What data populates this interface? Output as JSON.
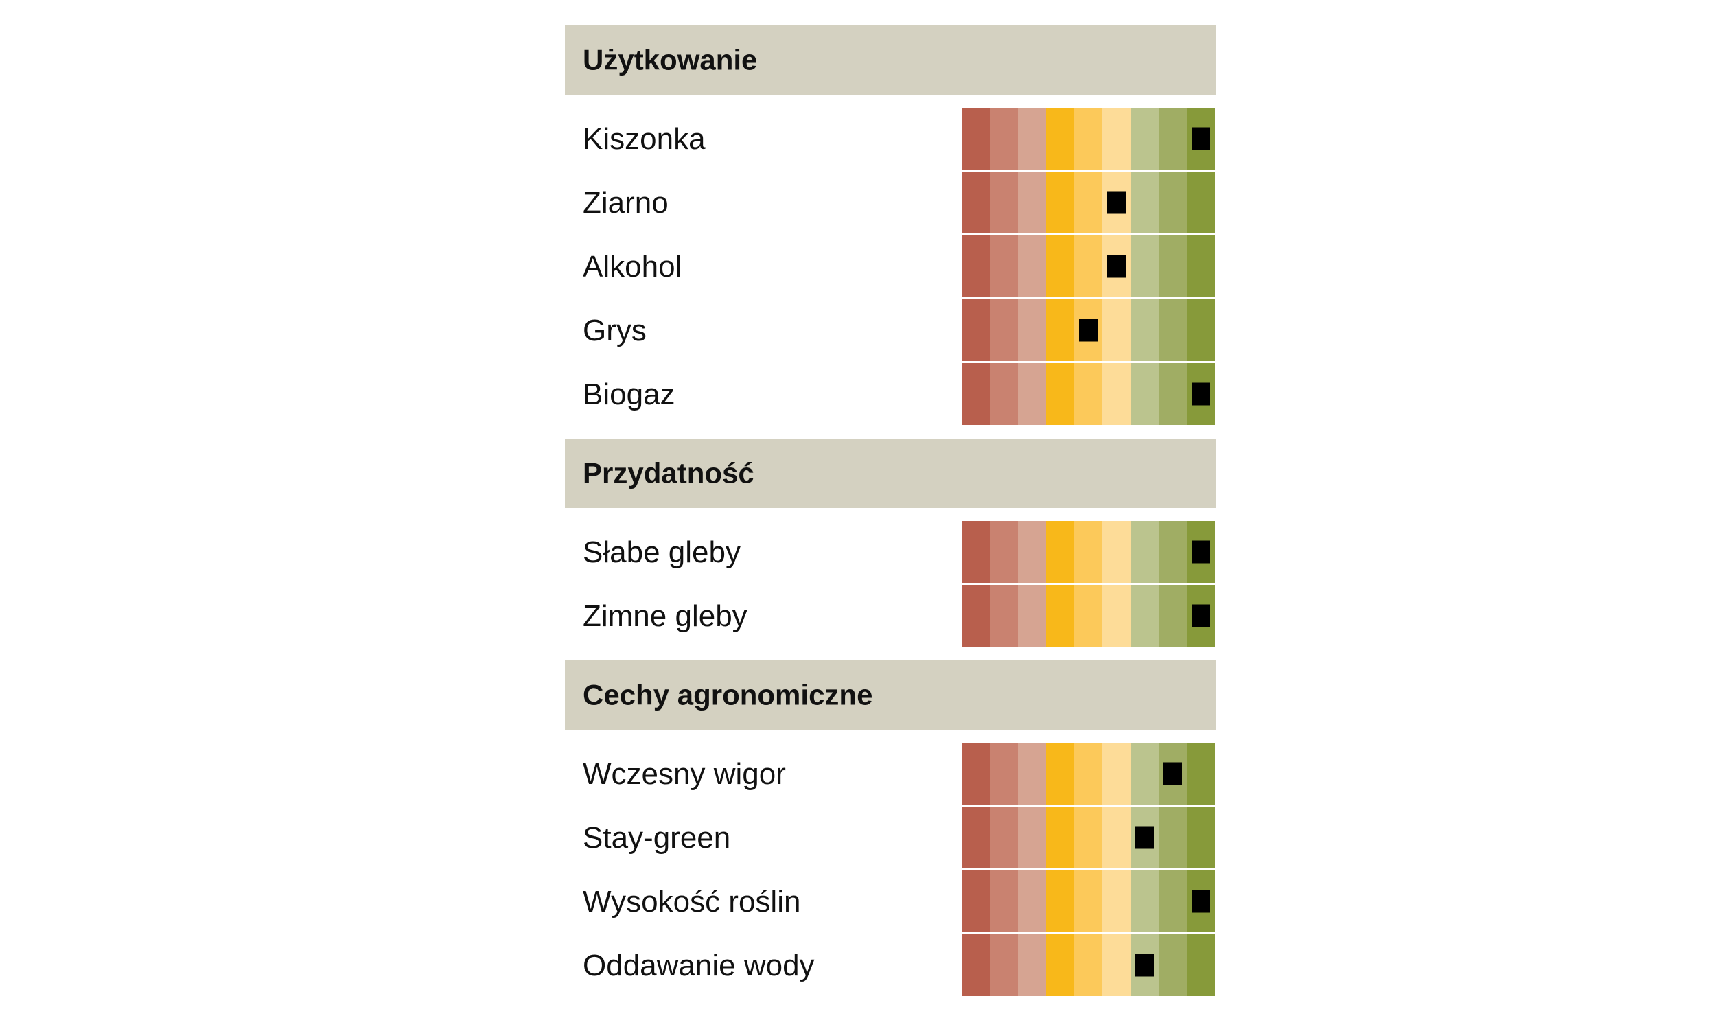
{
  "chart_data": {
    "type": "table",
    "scale_steps": 9,
    "scale_colors": [
      "#b85f4d",
      "#c98270",
      "#d6a492",
      "#f8b81a",
      "#fcc95a",
      "#fddc98",
      "#bbc48e",
      "#a0ad64",
      "#879a3a"
    ],
    "sections": [
      {
        "title": "Użytkowanie",
        "rows": [
          {
            "label": "Kiszonka",
            "value": 9
          },
          {
            "label": "Ziarno",
            "value": 6
          },
          {
            "label": "Alkohol",
            "value": 6
          },
          {
            "label": "Grys",
            "value": 5
          },
          {
            "label": "Biogaz",
            "value": 9
          }
        ]
      },
      {
        "title": "Przydatność",
        "rows": [
          {
            "label": "Słabe gleby",
            "value": 9
          },
          {
            "label": "Zimne gleby",
            "value": 9
          }
        ]
      },
      {
        "title": "Cechy agronomiczne",
        "rows": [
          {
            "label": "Wczesny wigor",
            "value": 8
          },
          {
            "label": "Stay-green",
            "value": 7
          },
          {
            "label": "Wysokość roślin",
            "value": 9
          },
          {
            "label": "Oddawanie wody",
            "value": 7
          }
        ]
      }
    ]
  }
}
